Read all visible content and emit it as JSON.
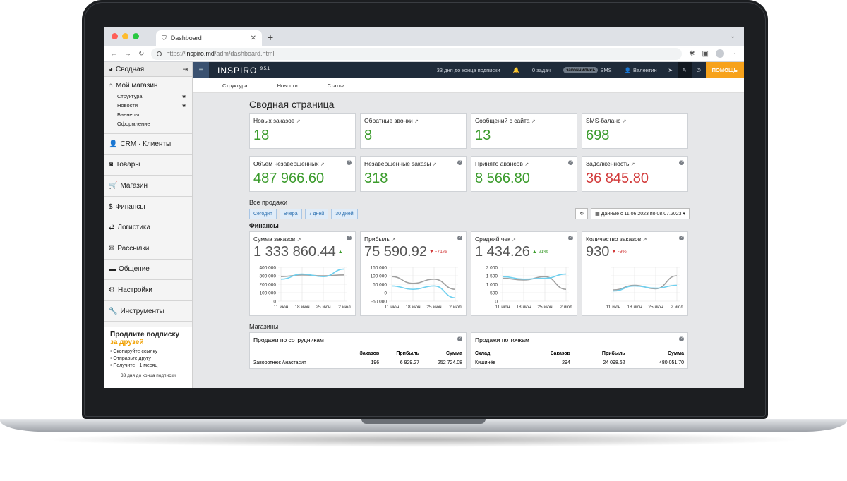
{
  "browser": {
    "tab_title": "Dashboard",
    "url_prefix": "https://",
    "url_host": "inspiro.md",
    "url_path": "/adm/dashboard.html"
  },
  "sidebar": {
    "header": "Сводная",
    "my_shop": "Мой магазин",
    "my_shop_items": [
      "Структура",
      "Новости",
      "Баннеры",
      "Оформление"
    ],
    "items": [
      "CRM · Клиенты",
      "Товары",
      "Магазин",
      "Финансы",
      "Логистика",
      "Рассылки",
      "Общение",
      "Настройки",
      "Инструменты"
    ],
    "promo": {
      "line1": "Продлите подписку",
      "line2": "за друзей",
      "steps": [
        "• Скопируйте ссылку",
        "• Отправьте другу",
        "• Получите +1 месяц"
      ],
      "footer": "33 дня до конца подписки"
    }
  },
  "topbar": {
    "brand": "INSPIRO",
    "version": "9.5.1",
    "subscription": "33 дня до конца подписки",
    "tasks": "0 задач",
    "sms_pill": "закончились",
    "sms": "SMS",
    "user": "Валентин",
    "help": "ПОМОЩЬ"
  },
  "subnav": [
    "Структура",
    "Новости",
    "Статьи"
  ],
  "page_title": "Сводная страница",
  "kpis_row1": [
    {
      "label": "Новых заказов",
      "value": "18"
    },
    {
      "label": "Обратные звонки",
      "value": "8"
    },
    {
      "label": "Сообщений с сайта",
      "value": "13"
    },
    {
      "label": "SMS-баланс",
      "value": "698"
    }
  ],
  "kpis_row2": [
    {
      "label": "Объем незавершенных",
      "value": "487 966.60"
    },
    {
      "label": "Незавершенные заказы",
      "value": "318"
    },
    {
      "label": "Принято авансов",
      "value": "8 566.80"
    },
    {
      "label": "Задолженность",
      "value": "36 845.80"
    }
  ],
  "sales": {
    "title": "Все продажи",
    "ranges": [
      "Сегодня",
      "Вчера",
      "7 дней",
      "30 дней"
    ],
    "date_range": "Данные с 11.06.2023 по 08.07.2023"
  },
  "finance": {
    "title": "Финансы",
    "cards": [
      {
        "label": "Сумма заказов",
        "value": "1 333 860.44",
        "delta": "▲",
        "delta_dir": "up"
      },
      {
        "label": "Прибыль",
        "value": "75 590.92",
        "delta": "▼ -71%",
        "delta_dir": "down"
      },
      {
        "label": "Средний чек",
        "value": "1 434.26",
        "delta": "▲ 21%",
        "delta_dir": "up"
      },
      {
        "label": "Количество заказов",
        "value": "930",
        "delta": "▼ -9%",
        "delta_dir": "down"
      }
    ]
  },
  "chart_data": [
    {
      "type": "line",
      "title": "Сумма заказов",
      "x": [
        "11 июн",
        "18 июн",
        "25 июн",
        "2 июл"
      ],
      "yticks": [
        "400 000",
        "300 000",
        "200 000",
        "100 000",
        "0"
      ],
      "ylim": [
        0,
        400000
      ],
      "series": [
        {
          "values": [
            290000,
            310000,
            300000,
            310000
          ],
          "color": "#a0a0a0"
        },
        {
          "values": [
            260000,
            320000,
            290000,
            380000
          ],
          "color": "#6fd0ef"
        }
      ]
    },
    {
      "type": "line",
      "title": "Прибыль",
      "x": [
        "11 июн",
        "18 июн",
        "25 июн",
        "2 июл"
      ],
      "yticks": [
        "150 000",
        "100 000",
        "50 000",
        "0",
        "-50 000"
      ],
      "ylim": [
        -50000,
        150000
      ],
      "series": [
        {
          "values": [
            95000,
            55000,
            80000,
            20000
          ],
          "color": "#a0a0a0"
        },
        {
          "values": [
            40000,
            20000,
            40000,
            -30000
          ],
          "color": "#6fd0ef"
        }
      ]
    },
    {
      "type": "line",
      "title": "Средний чек",
      "x": [
        "11 июн",
        "18 июн",
        "25 июн",
        "2 июл"
      ],
      "yticks": [
        "2 000",
        "1 500",
        "1 000",
        "500",
        "0"
      ],
      "ylim": [
        0,
        2000
      ],
      "series": [
        {
          "values": [
            1350,
            1250,
            1450,
            700
          ],
          "color": "#a0a0a0"
        },
        {
          "values": [
            1450,
            1300,
            1350,
            1600
          ],
          "color": "#6fd0ef"
        }
      ]
    },
    {
      "type": "line",
      "title": "Количество заказов",
      "x": [
        "11 июн",
        "18 июн",
        "25 июн",
        "2 июл"
      ],
      "yticks": [
        "",
        "",
        "",
        "",
        ""
      ],
      "ylim": [
        0,
        60
      ],
      "series": [
        {
          "values": [
            20,
            28,
            22,
            45
          ],
          "color": "#a0a0a0"
        },
        {
          "values": [
            18,
            27,
            23,
            28
          ],
          "color": "#6fd0ef"
        }
      ]
    }
  ],
  "shops": {
    "title": "Магазины",
    "by_staff": {
      "title": "Продажи по сотрудникам",
      "columns": [
        "",
        "Заказов",
        "Прибыль",
        "Сумма"
      ],
      "rows": [
        [
          "Заворотнюк Анастасия",
          "196",
          "6 929.27",
          "252 724.08"
        ]
      ]
    },
    "by_points": {
      "title": "Продажи по точкам",
      "columns": [
        "Склад",
        "Заказов",
        "Прибыль",
        "Сумма"
      ],
      "rows": [
        [
          "Кишинёв",
          "294",
          "24 098.62",
          "480 051.70"
        ]
      ]
    }
  }
}
